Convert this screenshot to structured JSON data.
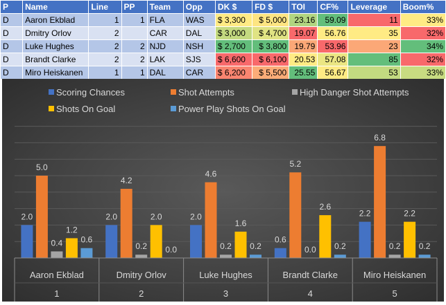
{
  "table": {
    "headers": [
      "P",
      "Name",
      "Line",
      "PP",
      "Team",
      "Opp",
      "DK $",
      "FD $",
      "TOI",
      "CF%",
      "Leverage",
      "Boom%"
    ],
    "rows": [
      {
        "cells": [
          "D",
          "Aaron Ekblad",
          "1",
          "1",
          "FLA",
          "WAS",
          "$ 3,300",
          "$ 5,000",
          "23.16",
          "59.09",
          "11",
          "33%"
        ],
        "colors": [
          "#ffeb84",
          "#fee582",
          "#b1d580",
          "#63be7b",
          "#f8696b",
          "#ffeb84"
        ]
      },
      {
        "cells": [
          "D",
          "Dmitry Orlov",
          "2",
          "",
          "CAR",
          "DAL",
          "$ 3,000",
          "$ 4,700",
          "19.07",
          "56.76",
          "35",
          "32%"
        ],
        "colors": [
          "#c4da80",
          "#e0e383",
          "#f8696b",
          "#ffeb84",
          "#ffeb84",
          "#f8696b"
        ]
      },
      {
        "cells": [
          "D",
          "Luke Hughes",
          "2",
          "2",
          "NJD",
          "NSH",
          "$ 2,700",
          "$ 3,800",
          "19.79",
          "53.96",
          "23",
          "34%"
        ],
        "colors": [
          "#63be7b",
          "#63be7b",
          "#fba877",
          "#f8696b",
          "#fba877",
          "#63be7b"
        ]
      },
      {
        "cells": [
          "D",
          "Brandt Clarke",
          "2",
          "2",
          "LAK",
          "SJS",
          "$ 6,600",
          "$ 6,100",
          "20.53",
          "57.08",
          "85",
          "32%"
        ],
        "colors": [
          "#f8696b",
          "#f8696b",
          "#ffeb84",
          "#ebe683",
          "#63be7b",
          "#f8696b"
        ]
      },
      {
        "cells": [
          "D",
          "Miro Heiskanen",
          "1",
          "1",
          "DAL",
          "CAR",
          "$ 6,200",
          "$ 5,500",
          "25.55",
          "56.67",
          "53",
          "33%"
        ],
        "colors": [
          "#f98570",
          "#fcac78",
          "#63be7b",
          "#ffeb84",
          "#c3da80",
          "#c8dc81"
        ]
      }
    ]
  },
  "chart_data": {
    "type": "bar",
    "categories": [
      "Aaron Ekblad",
      "Dmitry Orlov",
      "Luke Hughes",
      "Brandt Clarke",
      "Miro Heiskanen"
    ],
    "category_numbers": [
      "1",
      "2",
      "3",
      "4",
      "5"
    ],
    "ylim": [
      0,
      8
    ],
    "grid": true,
    "legend_position": "top",
    "series": [
      {
        "name": "Scoring Chances",
        "color": "#4472c4",
        "values": [
          2.0,
          2.0,
          2.0,
          0.6,
          2.2
        ]
      },
      {
        "name": "Shot Attempts",
        "color": "#ed7d31",
        "values": [
          5.0,
          4.2,
          4.6,
          5.2,
          6.8
        ]
      },
      {
        "name": "High Danger Shot Attempts",
        "color": "#a5a5a5",
        "values": [
          0.4,
          0.2,
          0.2,
          0.0,
          0.2
        ]
      },
      {
        "name": "Shots On Goal",
        "color": "#ffc000",
        "values": [
          1.2,
          2.0,
          1.6,
          2.6,
          2.2
        ]
      },
      {
        "name": "Power Play Shots On Goal",
        "color": "#5b9bd5",
        "values": [
          0.6,
          0.0,
          0.2,
          0.2,
          0.2
        ]
      }
    ]
  }
}
